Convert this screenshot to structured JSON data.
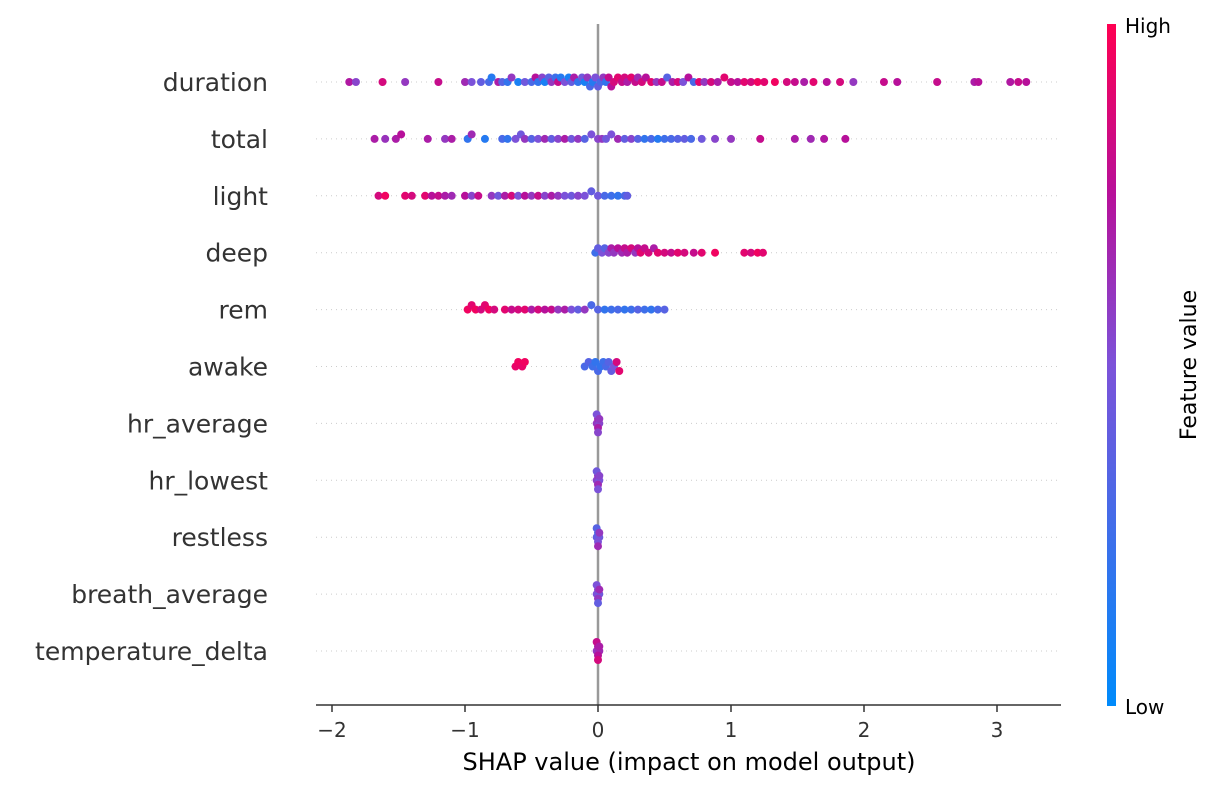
{
  "chart_data": {
    "type": "scatter",
    "title": "",
    "xlabel": "SHAP value (impact on model output)",
    "ylabel": "",
    "xlim": [
      -2.15,
      3.45
    ],
    "xticks": [
      -2,
      -1,
      0,
      1,
      2,
      3
    ],
    "xtick_labels": [
      "−2",
      "−1",
      "0",
      "1",
      "2",
      "3"
    ],
    "colorbar": {
      "title": "Feature value",
      "high_label": "High",
      "low_label": "Low",
      "high_color": "#ff0052",
      "low_color": "#008bfb"
    },
    "grid": "dotted horizontal per feature",
    "features": [
      {
        "name": "duration",
        "points": [
          [
            -1.87,
            0.72
          ],
          [
            -1.82,
            0.55
          ],
          [
            -1.62,
            0.85
          ],
          [
            -1.45,
            0.6
          ],
          [
            -1.2,
            0.8
          ],
          [
            -1.0,
            0.65
          ],
          [
            -0.95,
            0.5
          ],
          [
            -0.88,
            0.4
          ],
          [
            -0.82,
            0.3
          ],
          [
            -0.8,
            0.15
          ],
          [
            -0.75,
            0.7
          ],
          [
            -0.72,
            0.35
          ],
          [
            -0.68,
            0.2
          ],
          [
            -0.65,
            0.6
          ],
          [
            -0.6,
            0.1
          ],
          [
            -0.55,
            0.45
          ],
          [
            -0.5,
            0.3
          ],
          [
            -0.47,
            0.75
          ],
          [
            -0.45,
            0.2
          ],
          [
            -0.42,
            0.55
          ],
          [
            -0.4,
            0.1
          ],
          [
            -0.37,
            0.35
          ],
          [
            -0.35,
            0.6
          ],
          [
            -0.32,
            0.25
          ],
          [
            -0.3,
            0.8
          ],
          [
            -0.28,
            0.15
          ],
          [
            -0.25,
            0.5
          ],
          [
            -0.22,
            0.1
          ],
          [
            -0.2,
            0.4
          ],
          [
            -0.18,
            0.7
          ],
          [
            -0.15,
            0.2
          ],
          [
            -0.12,
            0.45
          ],
          [
            -0.1,
            0.1
          ],
          [
            -0.08,
            0.6
          ],
          [
            -0.06,
            0.3
          ],
          [
            -0.04,
            0.15
          ],
          [
            -0.02,
            0.5
          ],
          [
            0.0,
            0.4
          ],
          [
            0.02,
            0.3
          ],
          [
            0.04,
            0.6
          ],
          [
            0.06,
            0.2
          ],
          [
            0.08,
            0.8
          ],
          [
            0.1,
            0.75
          ],
          [
            0.12,
            0.85
          ],
          [
            0.15,
            0.9
          ],
          [
            0.18,
            0.8
          ],
          [
            0.2,
            0.85
          ],
          [
            0.22,
            0.7
          ],
          [
            0.25,
            0.9
          ],
          [
            0.28,
            0.8
          ],
          [
            0.3,
            0.65
          ],
          [
            0.33,
            0.85
          ],
          [
            0.36,
            0.75
          ],
          [
            0.4,
            0.9
          ],
          [
            0.44,
            0.6
          ],
          [
            0.48,
            0.8
          ],
          [
            0.52,
            0.35
          ],
          [
            0.56,
            0.7
          ],
          [
            0.6,
            0.85
          ],
          [
            0.64,
            0.5
          ],
          [
            0.68,
            0.75
          ],
          [
            0.72,
            0.3
          ],
          [
            0.76,
            0.9
          ],
          [
            0.8,
            0.6
          ],
          [
            0.85,
            0.85
          ],
          [
            0.9,
            0.7
          ],
          [
            0.95,
            0.9
          ],
          [
            1.0,
            0.8
          ],
          [
            1.05,
            0.75
          ],
          [
            1.1,
            0.9
          ],
          [
            1.15,
            0.85
          ],
          [
            1.2,
            0.95
          ],
          [
            1.25,
            0.9
          ],
          [
            1.33,
            0.95
          ],
          [
            1.42,
            0.85
          ],
          [
            1.48,
            0.8
          ],
          [
            1.55,
            0.7
          ],
          [
            1.62,
            0.9
          ],
          [
            1.72,
            0.75
          ],
          [
            1.82,
            0.85
          ],
          [
            1.92,
            0.6
          ],
          [
            2.15,
            0.8
          ],
          [
            2.25,
            0.75
          ],
          [
            2.55,
            0.8
          ],
          [
            2.83,
            0.7
          ],
          [
            2.86,
            0.75
          ],
          [
            3.1,
            0.72
          ],
          [
            3.16,
            0.8
          ],
          [
            3.22,
            0.75
          ]
        ]
      },
      {
        "name": "total",
        "points": [
          [
            -1.68,
            0.7
          ],
          [
            -1.6,
            0.62
          ],
          [
            -1.52,
            0.7
          ],
          [
            -1.48,
            0.75
          ],
          [
            -1.28,
            0.7
          ],
          [
            -1.15,
            0.6
          ],
          [
            -1.1,
            0.7
          ],
          [
            -0.98,
            0.2
          ],
          [
            -0.95,
            0.65
          ],
          [
            -0.85,
            0.15
          ],
          [
            -0.72,
            0.3
          ],
          [
            -0.68,
            0.2
          ],
          [
            -0.62,
            0.5
          ],
          [
            -0.58,
            0.45
          ],
          [
            -0.55,
            0.6
          ],
          [
            -0.5,
            0.35
          ],
          [
            -0.45,
            0.5
          ],
          [
            -0.4,
            0.65
          ],
          [
            -0.35,
            0.4
          ],
          [
            -0.3,
            0.55
          ],
          [
            -0.25,
            0.7
          ],
          [
            -0.2,
            0.45
          ],
          [
            -0.15,
            0.6
          ],
          [
            -0.1,
            0.35
          ],
          [
            -0.05,
            0.5
          ],
          [
            0.0,
            0.55
          ],
          [
            0.03,
            0.6
          ],
          [
            0.06,
            0.45
          ],
          [
            0.1,
            0.5
          ],
          [
            0.15,
            0.65
          ],
          [
            0.2,
            0.4
          ],
          [
            0.25,
            0.55
          ],
          [
            0.3,
            0.35
          ],
          [
            0.35,
            0.2
          ],
          [
            0.4,
            0.3
          ],
          [
            0.45,
            0.15
          ],
          [
            0.5,
            0.25
          ],
          [
            0.55,
            0.3
          ],
          [
            0.6,
            0.35
          ],
          [
            0.65,
            0.4
          ],
          [
            0.7,
            0.3
          ],
          [
            0.78,
            0.45
          ],
          [
            0.88,
            0.55
          ],
          [
            1.0,
            0.6
          ],
          [
            1.22,
            0.8
          ],
          [
            1.48,
            0.7
          ],
          [
            1.6,
            0.65
          ],
          [
            1.7,
            0.72
          ],
          [
            1.86,
            0.75
          ]
        ]
      },
      {
        "name": "light",
        "points": [
          [
            -1.65,
            0.85
          ],
          [
            -1.6,
            0.95
          ],
          [
            -1.45,
            0.9
          ],
          [
            -1.4,
            0.85
          ],
          [
            -1.3,
            0.9
          ],
          [
            -1.25,
            0.75
          ],
          [
            -1.2,
            0.8
          ],
          [
            -1.15,
            0.7
          ],
          [
            -1.1,
            0.65
          ],
          [
            -1.0,
            0.75
          ],
          [
            -0.95,
            0.55
          ],
          [
            -0.9,
            0.8
          ],
          [
            -0.8,
            0.6
          ],
          [
            -0.75,
            0.45
          ],
          [
            -0.7,
            0.7
          ],
          [
            -0.65,
            0.85
          ],
          [
            -0.6,
            0.5
          ],
          [
            -0.55,
            0.75
          ],
          [
            -0.5,
            0.6
          ],
          [
            -0.45,
            0.8
          ],
          [
            -0.4,
            0.55
          ],
          [
            -0.35,
            0.7
          ],
          [
            -0.3,
            0.6
          ],
          [
            -0.25,
            0.5
          ],
          [
            -0.2,
            0.45
          ],
          [
            -0.15,
            0.55
          ],
          [
            -0.1,
            0.5
          ],
          [
            -0.05,
            0.4
          ],
          [
            0.0,
            0.45
          ],
          [
            0.05,
            0.3
          ],
          [
            0.1,
            0.25
          ],
          [
            0.15,
            0.2
          ],
          [
            0.2,
            0.3
          ],
          [
            0.22,
            0.4
          ]
        ]
      },
      {
        "name": "deep",
        "points": [
          [
            -0.02,
            0.25
          ],
          [
            0.0,
            0.4
          ],
          [
            0.03,
            0.5
          ],
          [
            0.05,
            0.35
          ],
          [
            0.08,
            0.55
          ],
          [
            0.1,
            0.7
          ],
          [
            0.12,
            0.6
          ],
          [
            0.15,
            0.75
          ],
          [
            0.18,
            0.65
          ],
          [
            0.2,
            0.8
          ],
          [
            0.22,
            0.7
          ],
          [
            0.25,
            0.85
          ],
          [
            0.28,
            0.6
          ],
          [
            0.3,
            0.75
          ],
          [
            0.32,
            0.9
          ],
          [
            0.35,
            0.8
          ],
          [
            0.38,
            0.85
          ],
          [
            0.42,
            0.7
          ],
          [
            0.45,
            0.9
          ],
          [
            0.5,
            0.85
          ],
          [
            0.55,
            0.8
          ],
          [
            0.6,
            0.9
          ],
          [
            0.65,
            0.85
          ],
          [
            0.72,
            0.8
          ],
          [
            0.78,
            0.9
          ],
          [
            0.88,
            0.95
          ],
          [
            1.1,
            0.9
          ],
          [
            1.15,
            0.85
          ],
          [
            1.2,
            0.95
          ],
          [
            1.24,
            0.9
          ]
        ]
      },
      {
        "name": "rem",
        "points": [
          [
            -0.98,
            0.95
          ],
          [
            -0.95,
            0.9
          ],
          [
            -0.92,
            0.95
          ],
          [
            -0.88,
            0.85
          ],
          [
            -0.85,
            0.9
          ],
          [
            -0.82,
            0.95
          ],
          [
            -0.78,
            0.85
          ],
          [
            -0.7,
            0.9
          ],
          [
            -0.65,
            0.8
          ],
          [
            -0.6,
            0.85
          ],
          [
            -0.55,
            0.9
          ],
          [
            -0.5,
            0.7
          ],
          [
            -0.45,
            0.85
          ],
          [
            -0.4,
            0.75
          ],
          [
            -0.35,
            0.8
          ],
          [
            -0.3,
            0.6
          ],
          [
            -0.25,
            0.7
          ],
          [
            -0.2,
            0.5
          ],
          [
            -0.15,
            0.4
          ],
          [
            -0.1,
            0.6
          ],
          [
            -0.05,
            0.3
          ],
          [
            0.0,
            0.35
          ],
          [
            0.05,
            0.2
          ],
          [
            0.1,
            0.25
          ],
          [
            0.15,
            0.3
          ],
          [
            0.2,
            0.2
          ],
          [
            0.25,
            0.25
          ],
          [
            0.3,
            0.35
          ],
          [
            0.35,
            0.25
          ],
          [
            0.4,
            0.2
          ],
          [
            0.45,
            0.3
          ],
          [
            0.5,
            0.35
          ]
        ]
      },
      {
        "name": "awake",
        "points": [
          [
            -0.62,
            0.92
          ],
          [
            -0.6,
            0.95
          ],
          [
            -0.57,
            0.92
          ],
          [
            -0.55,
            0.95
          ],
          [
            -0.1,
            0.3
          ],
          [
            -0.07,
            0.35
          ],
          [
            -0.04,
            0.25
          ],
          [
            -0.02,
            0.2
          ],
          [
            0.0,
            0.3
          ],
          [
            0.02,
            0.2
          ],
          [
            0.04,
            0.25
          ],
          [
            0.06,
            0.3
          ],
          [
            0.08,
            0.35
          ],
          [
            0.1,
            0.4
          ],
          [
            0.12,
            0.5
          ],
          [
            0.14,
            0.85
          ],
          [
            0.16,
            0.9
          ]
        ]
      },
      {
        "name": "hr_average",
        "points": [
          [
            -0.01,
            0.6
          ],
          [
            0.0,
            0.65
          ],
          [
            0.01,
            0.55
          ],
          [
            0.0,
            0.7
          ],
          [
            -0.01,
            0.5
          ],
          [
            0.01,
            0.6
          ],
          [
            0.0,
            0.55
          ]
        ]
      },
      {
        "name": "hr_lowest",
        "points": [
          [
            -0.01,
            0.55
          ],
          [
            0.0,
            0.6
          ],
          [
            0.01,
            0.5
          ],
          [
            0.0,
            0.65
          ],
          [
            -0.01,
            0.45
          ],
          [
            0.01,
            0.55
          ],
          [
            0.0,
            0.5
          ]
        ]
      },
      {
        "name": "restless",
        "points": [
          [
            -0.01,
            0.4
          ],
          [
            0.0,
            0.3
          ],
          [
            0.01,
            0.45
          ],
          [
            0.0,
            0.5
          ],
          [
            -0.01,
            0.35
          ],
          [
            0.01,
            0.6
          ],
          [
            0.0,
            0.65
          ]
        ]
      },
      {
        "name": "breath_average",
        "points": [
          [
            -0.01,
            0.5
          ],
          [
            0.0,
            0.55
          ],
          [
            0.01,
            0.45
          ],
          [
            0.0,
            0.6
          ],
          [
            -0.01,
            0.5
          ],
          [
            0.01,
            0.65
          ],
          [
            0.0,
            0.4
          ]
        ]
      },
      {
        "name": "temperature_delta",
        "points": [
          [
            -0.01,
            0.6
          ],
          [
            0.0,
            0.7
          ],
          [
            0.01,
            0.65
          ],
          [
            0.0,
            0.75
          ],
          [
            -0.01,
            0.8
          ],
          [
            0.01,
            0.7
          ],
          [
            0.0,
            0.85
          ]
        ]
      }
    ]
  }
}
